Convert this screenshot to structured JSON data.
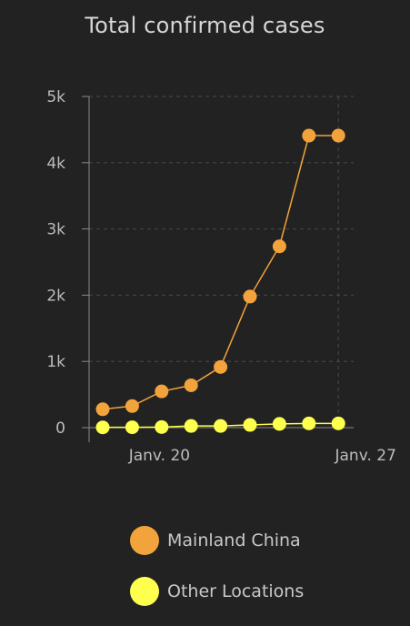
{
  "chart_data": {
    "type": "line",
    "title": "Total confirmed cases",
    "xlabel": "",
    "ylabel": "",
    "x": [
      "Jan 19",
      "Jan 20",
      "Jan 21",
      "Jan 22",
      "Jan 23",
      "Jan 24",
      "Jan 25",
      "Jan 26",
      "Jan 27"
    ],
    "x_tick_labels": [
      "Janv. 20",
      "Janv. 27"
    ],
    "x_tick_dates": [
      "Jan 20",
      "Jan 27"
    ],
    "y_tick_labels": [
      "0",
      "1k",
      "2k",
      "3k",
      "4k",
      "5k"
    ],
    "y_ticks": [
      0,
      1000,
      2000,
      3000,
      4000,
      5000
    ],
    "ylim": [
      0,
      5000
    ],
    "grid": true,
    "legend_position": "bottom",
    "series": [
      {
        "name": "Mainland China",
        "color": "#f3a33b",
        "values": [
          278,
          326,
          547,
          639,
          916,
          1979,
          2737,
          4409,
          4409
        ]
      },
      {
        "name": "Other Locations",
        "color": "#ffff4d",
        "values": [
          4,
          6,
          9,
          25,
          25,
          41,
          56,
          64,
          64
        ]
      }
    ]
  }
}
